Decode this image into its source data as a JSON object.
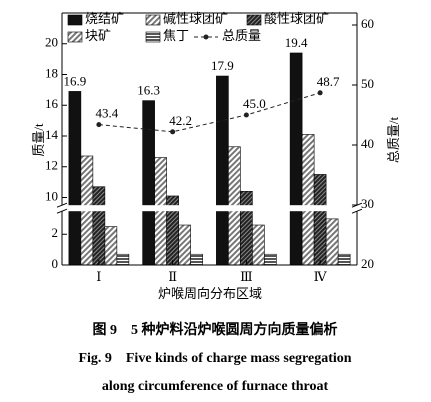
{
  "chart_data": {
    "type": "bar",
    "x_label": "炉喉周向分布区域",
    "y_label": "质量/t",
    "y2_label": "总质量/t",
    "categories": [
      "Ⅰ",
      "Ⅱ",
      "Ⅲ",
      "Ⅳ"
    ],
    "ylim": [
      0,
      22
    ],
    "ybreak": [
      3.5,
      9.5
    ],
    "yticks": [
      0,
      2,
      10,
      12,
      14,
      16,
      18,
      20
    ],
    "y2lim": [
      20,
      62
    ],
    "y2ticks": [
      20,
      30,
      40,
      50,
      60
    ],
    "series": [
      {
        "name": "烧结矿",
        "color": "#111111",
        "pattern": "solid",
        "values": [
          16.9,
          16.3,
          17.9,
          19.4
        ],
        "show_labels": true
      },
      {
        "name": "碱性球团矿",
        "color": "#777777",
        "pattern": "diagonal",
        "values": [
          12.7,
          12.6,
          13.3,
          14.1
        ]
      },
      {
        "name": "酸性球团矿",
        "color": "#333333",
        "pattern": "dense",
        "values": [
          10.7,
          10.1,
          10.4,
          11.5
        ]
      },
      {
        "name": "块矿",
        "color": "#888888",
        "pattern": "diagonal",
        "values": [
          2.5,
          2.6,
          2.6,
          3.0
        ]
      },
      {
        "name": "焦丁",
        "color": "#555555",
        "pattern": "horizontal",
        "values": [
          0.7,
          0.7,
          0.7,
          0.7
        ]
      },
      {
        "name": "总质量",
        "type": "line",
        "axis": "y2",
        "color": "#222222",
        "values": [
          43.4,
          42.2,
          45.0,
          48.7
        ],
        "value_labels": [
          "43.4",
          "42.2",
          "45.0",
          "48.7"
        ]
      }
    ],
    "caption_cn": "图 9　5 种炉料沿炉喉圆周方向质量偏析",
    "caption_en": [
      "Fig. 9　Five kinds of charge mass segregation",
      "along circumference of furnace throat"
    ]
  }
}
